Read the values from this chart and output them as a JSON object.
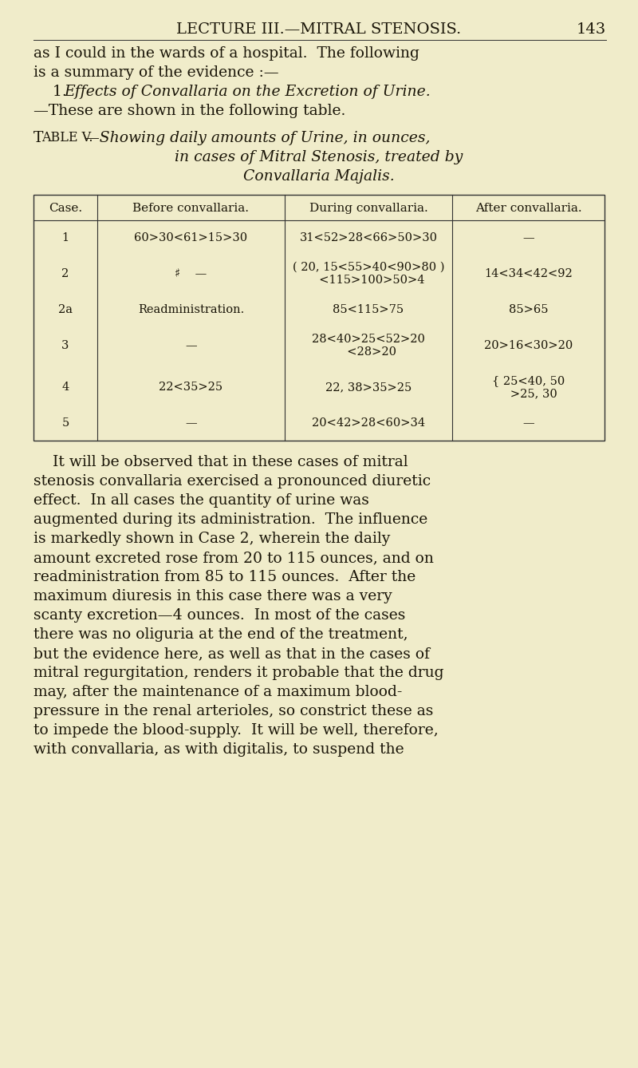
{
  "background_color": "#f0ecca",
  "text_color": "#1a1508",
  "page_number": "143",
  "header_left": "LECTURE III.—MITRAL STENOSIS.",
  "header_fontsize": 14,
  "page_number_fontsize": 14,
  "body_lines": [
    "as I could in the wards of a hospital.  The following",
    "is a summary of the evidence :—"
  ],
  "body_italic_prefix": "    1. ",
  "body_italic_text": "Effects of Convallaria on the Excretion of Urine.",
  "body_after_italic": "—These are shown in the following table.",
  "body_fontsize": 13.5,
  "table_caption_left": "T",
  "table_caption_left2": "able V.",
  "table_caption_italic": "—Showing daily amounts of Urine, in ounces,",
  "table_caption_line2": "in cases of Mitral Stenosis, treated by",
  "table_caption_line3": "Convallaria Majalis.",
  "table_caption_fontsize": 13.5,
  "table_header": [
    "Case.",
    "Before convallaria.",
    "During convallaria.",
    "After convallaria."
  ],
  "table_header_fontsize": 11,
  "table_data_fontsize": 10.5,
  "table_rows": [
    {
      "case": "1",
      "before": [
        "60>30<61>15>30"
      ],
      "during": [
        "31<52>28<66>50>30"
      ],
      "after": [
        "—"
      ]
    },
    {
      "case": "2",
      "before": [
        "♯    —"
      ],
      "during": [
        "( 20, 15<55>40<90>80 )",
        "  <115>100>50>4"
      ],
      "after": [
        "14<34<42<92"
      ]
    },
    {
      "case": "2a",
      "before": [
        "Readministration."
      ],
      "during": [
        "85<115>75"
      ],
      "after": [
        "85>65"
      ]
    },
    {
      "case": "3",
      "before": [
        "—"
      ],
      "during": [
        "28<40>25<52>20",
        "  <28>20"
      ],
      "after": [
        "20>16<30>20"
      ]
    },
    {
      "case": "4",
      "before": [
        "22<35>25"
      ],
      "during": [
        "22, 38>35>25"
      ],
      "after": [
        "{ 25<40, 50",
        "   >25, 30"
      ]
    },
    {
      "case": "5",
      "before": [
        "—"
      ],
      "during": [
        "20<42>28<60>34"
      ],
      "after": [
        "—"
      ]
    }
  ],
  "para_lines": [
    "    It will be observed that in these cases of mitral",
    "stenosis convallaria exercised a pronounced diuretic",
    "effect.  In all cases the quantity of urine was",
    "augmented during its administration.  The influence",
    "is markedly shown in Case 2, wherein the daily",
    "amount excreted rose from 20 to 115 ounces, and on",
    "readministration from 85 to 115 ounces.  After the",
    "maximum diuresis in this case there was a very",
    "scanty excretion—4 ounces.  In most of the cases",
    "there was no oliguria at the end of the treatment,",
    "but the evidence here, as well as that in the cases of",
    "mitral regurgitation, renders it probable that the drug",
    "may, after the maintenance of a maximum blood-",
    "pressure in the renal arterioles, so constrict these as",
    "to impede the blood-supply.  It will be well, therefore,",
    "with convallaria, as with digitalis, to suspend the"
  ],
  "para_fontsize": 13.5
}
